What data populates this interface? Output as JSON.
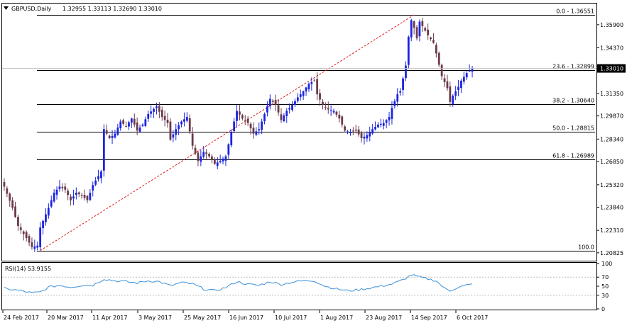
{
  "header": {
    "symbol_label": "GBPUSD,Daily",
    "ohlc_text": "1.32955 1.33113 1.32690 1.33010"
  },
  "rsi_header": {
    "label": "RSI(14) 53.9155"
  },
  "colors": {
    "bull": "#1b24e0",
    "bear": "#6b3a4a",
    "rsi_line": "#3a8fd8",
    "fib_trend": "#e02020",
    "price_tag_bg": "#000000",
    "price_tag_fg": "#ffffff"
  },
  "chart_data": [
    {
      "type": "candlestick",
      "title": "GBPUSD,Daily",
      "ylim": [
        1.2035,
        1.3725
      ],
      "price_ticks": [
        "1.35900",
        "1.34370",
        "1.32899",
        "1.31350",
        "1.29870",
        "1.28340",
        "1.26850",
        "1.25320",
        "1.23840",
        "1.22310",
        "1.20825"
      ],
      "date_ticks": [
        "24 Feb 2017",
        "20 Mar 2017",
        "11 Apr 2017",
        "3 May 2017",
        "25 May 2017",
        "16 Jun 2017",
        "10 Jul 2017",
        "1 Aug 2017",
        "23 Aug 2017",
        "14 Sep 2017",
        "6 Oct 2017"
      ],
      "current_price": "1.33010",
      "close_path": [
        [
          0,
          1.252
        ],
        [
          3,
          1.238
        ],
        [
          5,
          1.226
        ],
        [
          8,
          1.218
        ],
        [
          10,
          1.212
        ],
        [
          12,
          1.213
        ],
        [
          13,
          1.225
        ],
        [
          16,
          1.238
        ],
        [
          18,
          1.248
        ],
        [
          20,
          1.252
        ],
        [
          22,
          1.25
        ],
        [
          24,
          1.243
        ],
        [
          26,
          1.248
        ],
        [
          28,
          1.246
        ],
        [
          30,
          1.243
        ],
        [
          32,
          1.253
        ],
        [
          35,
          1.262
        ],
        [
          36,
          1.29
        ],
        [
          38,
          1.284
        ],
        [
          40,
          1.287
        ],
        [
          42,
          1.295
        ],
        [
          44,
          1.292
        ],
        [
          46,
          1.297
        ],
        [
          48,
          1.289
        ],
        [
          50,
          1.293
        ],
        [
          52,
          1.3
        ],
        [
          55,
          1.305
        ],
        [
          57,
          1.298
        ],
        [
          59,
          1.294
        ],
        [
          60,
          1.283
        ],
        [
          62,
          1.29
        ],
        [
          64,
          1.295
        ],
        [
          66,
          1.298
        ],
        [
          68,
          1.279
        ],
        [
          70,
          1.269
        ],
        [
          72,
          1.275
        ],
        [
          74,
          1.272
        ],
        [
          76,
          1.267
        ],
        [
          78,
          1.269
        ],
        [
          80,
          1.272
        ],
        [
          82,
          1.288
        ],
        [
          84,
          1.302
        ],
        [
          86,
          1.297
        ],
        [
          88,
          1.294
        ],
        [
          90,
          1.287
        ],
        [
          92,
          1.29
        ],
        [
          94,
          1.3
        ],
        [
          96,
          1.31
        ],
        [
          98,
          1.306
        ],
        [
          100,
          1.296
        ],
        [
          102,
          1.302
        ],
        [
          104,
          1.306
        ],
        [
          106,
          1.311
        ],
        [
          108,
          1.315
        ],
        [
          110,
          1.32
        ],
        [
          112,
          1.322
        ],
        [
          113,
          1.313
        ],
        [
          115,
          1.306
        ],
        [
          117,
          1.303
        ],
        [
          119,
          1.302
        ],
        [
          121,
          1.297
        ],
        [
          123,
          1.289
        ],
        [
          125,
          1.288
        ],
        [
          127,
          1.289
        ],
        [
          129,
          1.284
        ],
        [
          131,
          1.286
        ],
        [
          133,
          1.29
        ],
        [
          135,
          1.293
        ],
        [
          137,
          1.294
        ],
        [
          139,
          1.298
        ],
        [
          140,
          1.304
        ],
        [
          142,
          1.313
        ],
        [
          143,
          1.315
        ],
        [
          145,
          1.332
        ],
        [
          146,
          1.351
        ],
        [
          147,
          1.362
        ],
        [
          148,
          1.357
        ],
        [
          149,
          1.35
        ],
        [
          150,
          1.361
        ],
        [
          151,
          1.358
        ],
        [
          153,
          1.352
        ],
        [
          155,
          1.347
        ],
        [
          156,
          1.34
        ],
        [
          158,
          1.325
        ],
        [
          160,
          1.317
        ],
        [
          161,
          1.308
        ],
        [
          162,
          1.312
        ],
        [
          164,
          1.318
        ],
        [
          165,
          1.322
        ],
        [
          167,
          1.327
        ],
        [
          169,
          1.33
        ]
      ],
      "fibonacci": {
        "levels": [
          {
            "ratio": "0.0",
            "price": 1.36551,
            "label": "0.0 - 1.36551"
          },
          {
            "ratio": "23.6",
            "price": 1.32899,
            "label": "23.6 - 1.32899"
          },
          {
            "ratio": "38.2",
            "price": 1.3064,
            "label": "38.2 - 1.30640"
          },
          {
            "ratio": "50.0",
            "price": 1.28815,
            "label": "50.0 - 1.28815"
          },
          {
            "ratio": "61.8",
            "price": 1.26989,
            "label": "61.8 - 1.26989"
          },
          {
            "ratio": "100.0",
            "price": 1.2097,
            "label": "100.0"
          }
        ],
        "trendline_from": [
          13,
          1.2097
        ],
        "trendline_to": [
          148,
          1.36551
        ]
      }
    },
    {
      "type": "line",
      "title": "RSI(14) 53.9155",
      "ylim": [
        0,
        100
      ],
      "tick_labels": [
        "100",
        "70",
        "50",
        "30",
        "0"
      ],
      "tick_values": [
        100,
        70,
        50,
        30,
        0
      ],
      "series": [
        {
          "values": [
            [
              0,
              45
            ],
            [
              6,
              40
            ],
            [
              10,
              35
            ],
            [
              13,
              37
            ],
            [
              16,
              48
            ],
            [
              20,
              52
            ],
            [
              24,
              48
            ],
            [
              28,
              52
            ],
            [
              32,
              52
            ],
            [
              36,
              66
            ],
            [
              40,
              62
            ],
            [
              44,
              60
            ],
            [
              48,
              57
            ],
            [
              52,
              62
            ],
            [
              56,
              60
            ],
            [
              60,
              51
            ],
            [
              64,
              58
            ],
            [
              68,
              55
            ],
            [
              72,
              44
            ],
            [
              76,
              40
            ],
            [
              80,
              47
            ],
            [
              84,
              60
            ],
            [
              88,
              54
            ],
            [
              92,
              52
            ],
            [
              96,
              60
            ],
            [
              100,
              54
            ],
            [
              104,
              59
            ],
            [
              108,
              62
            ],
            [
              112,
              62
            ],
            [
              116,
              50
            ],
            [
              120,
              44
            ],
            [
              124,
              40
            ],
            [
              128,
              42
            ],
            [
              132,
              46
            ],
            [
              136,
              50
            ],
            [
              140,
              55
            ],
            [
              144,
              64
            ],
            [
              147,
              75
            ],
            [
              150,
              70
            ],
            [
              153,
              66
            ],
            [
              156,
              62
            ],
            [
              159,
              45
            ],
            [
              161,
              40
            ],
            [
              164,
              48
            ],
            [
              167,
              52
            ],
            [
              169,
              54
            ]
          ]
        }
      ]
    }
  ]
}
